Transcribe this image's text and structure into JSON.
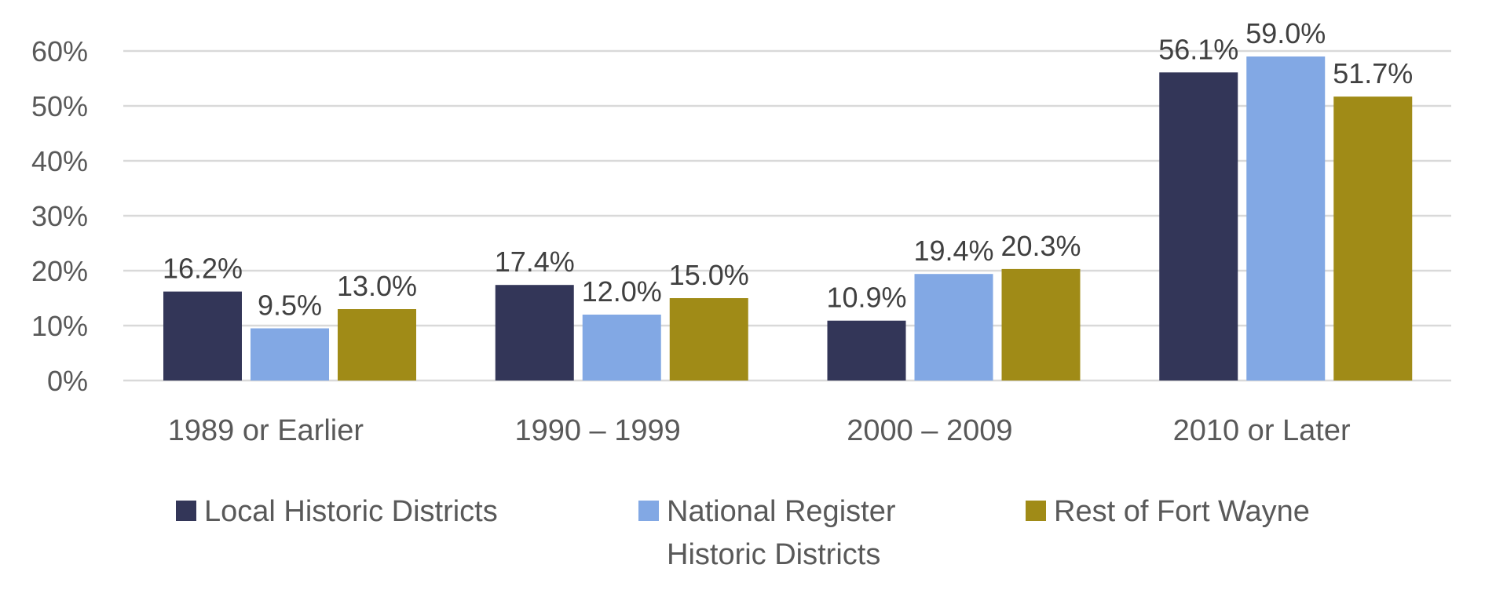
{
  "chart_data": {
    "type": "bar",
    "title": "",
    "xlabel": "",
    "ylabel": "",
    "categories": [
      "1989 or Earlier",
      "1990 – 1999",
      "2000 – 2009",
      "2010 or Later"
    ],
    "series": [
      {
        "name": "Local Historic Districts",
        "color": "#333658",
        "values": [
          16.2,
          17.4,
          10.9,
          56.1
        ],
        "labels": [
          "16.2%",
          "17.4%",
          "10.9%",
          "56.1%"
        ]
      },
      {
        "name": "National Register Historic Districts",
        "name_lines": [
          "National Register",
          "Historic Districts"
        ],
        "color": "#82A8E4",
        "values": [
          9.5,
          12.0,
          19.4,
          59.0
        ],
        "labels": [
          "9.5%",
          "12.0%",
          "19.4%",
          "59.0%"
        ]
      },
      {
        "name": "Rest of Fort Wayne",
        "color": "#A08B17",
        "values": [
          13.0,
          15.0,
          20.3,
          51.7
        ],
        "labels": [
          "13.0%",
          "15.0%",
          "20.3%",
          "51.7%"
        ]
      }
    ],
    "ylim": [
      0,
      60
    ],
    "yticks": [
      0,
      10,
      20,
      30,
      40,
      50,
      60
    ],
    "ytick_labels": [
      "0%",
      "10%",
      "20%",
      "30%",
      "40%",
      "50%",
      "60%"
    ],
    "grid": true,
    "legend": "bottom"
  },
  "colors": {
    "gridline": "#D9D9D9",
    "axis_text": "#595959",
    "data_label_text": "#404040"
  }
}
